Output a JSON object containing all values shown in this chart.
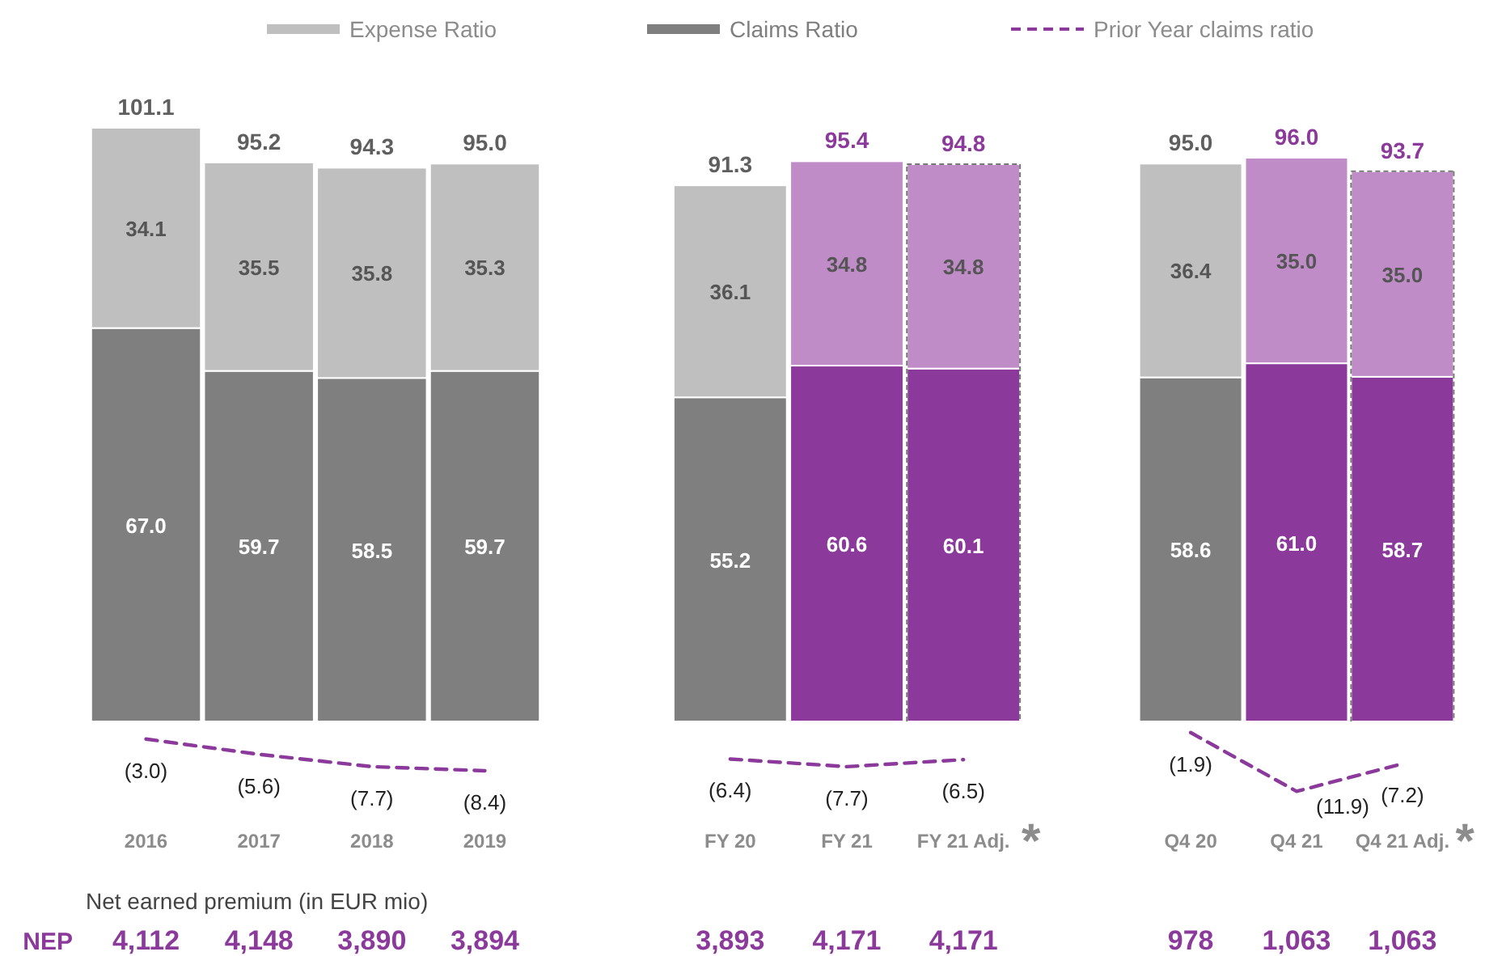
{
  "chart_data": [
    {
      "type": "bar",
      "stacked": true,
      "categories": [
        "2016",
        "2017",
        "2018",
        "2019"
      ],
      "tick_labels": "x",
      "legend": "top",
      "totals": [
        "101.1",
        "95.2",
        "94.3",
        "95.0"
      ],
      "series": [
        {
          "name": "Claims Ratio",
          "color": "#7f7f7f",
          "colors": [
            "#7f7f7f",
            "#7f7f7f",
            "#7f7f7f",
            "#7f7f7f"
          ],
          "values": [
            67.0,
            59.7,
            58.5,
            59.7
          ],
          "value_labels": [
            "67.0",
            "59.7",
            "58.5",
            "59.7"
          ]
        },
        {
          "name": "Expense Ratio",
          "color": "#bfbfbf",
          "colors": [
            "#bfbfbf",
            "#bfbfbf",
            "#bfbfbf",
            "#bfbfbf"
          ],
          "values": [
            34.1,
            35.5,
            35.8,
            35.3
          ],
          "value_labels": [
            "34.1",
            "35.5",
            "35.8",
            "35.3"
          ]
        },
        {
          "name": "Prior Year claims ratio",
          "type": "line",
          "line_style": "dashed",
          "color": "#8b3a9b",
          "values": [
            -3.0,
            -5.6,
            -7.7,
            -8.4
          ],
          "value_labels": [
            "(3.0)",
            "(5.6)",
            "(7.7)",
            "(8.4)"
          ]
        }
      ],
      "annotations": [
        "Net earned premium (in EUR mio)",
        "NEP",
        "4,112",
        "4,148",
        "3,890",
        "3,894"
      ]
    },
    {
      "type": "bar",
      "stacked": true,
      "categories": [
        "FY 20",
        "FY 21",
        "FY 21 Adj."
      ],
      "tick_labels": "x",
      "totals": [
        "91.3",
        "95.4",
        "94.8"
      ],
      "series": [
        {
          "colors": [
            "#7f7f7f",
            "#8b3a9b",
            "#8b3a9b"
          ],
          "values": [
            55.2,
            60.6,
            60.1
          ],
          "value_labels": [
            "55.2",
            "60.6",
            "60.1"
          ]
        },
        {
          "colors": [
            "#bfbfbf",
            "#bf8cc8",
            "#bf8cc8"
          ],
          "values": [
            36.1,
            34.8,
            34.8
          ],
          "value_labels": [
            "36.1",
            "34.8",
            "34.8"
          ]
        },
        {
          "type": "line",
          "line_style": "dashed",
          "color": "#8b3a9b",
          "values": [
            -6.4,
            -7.7,
            -6.5
          ],
          "value_labels": [
            "(6.4)",
            "(7.7)",
            "(6.5)"
          ]
        }
      ],
      "annotations": [
        "*",
        "3,893",
        "4,171",
        "4,171"
      ]
    },
    {
      "type": "bar",
      "stacked": true,
      "categories": [
        "Q4 20",
        "Q4 21",
        "Q4 21 Adj."
      ],
      "tick_labels": "x",
      "totals": [
        "95.0",
        "96.0",
        "93.7"
      ],
      "series": [
        {
          "colors": [
            "#7f7f7f",
            "#8b3a9b",
            "#8b3a9b"
          ],
          "values": [
            58.6,
            61.0,
            58.7
          ],
          "value_labels": [
            "58.6",
            "61.0",
            "58.7"
          ]
        },
        {
          "colors": [
            "#bfbfbf",
            "#bf8cc8",
            "#bf8cc8"
          ],
          "values": [
            36.4,
            35.0,
            35.0
          ],
          "value_labels": [
            "36.4",
            "35.0",
            "35.0"
          ]
        },
        {
          "type": "line",
          "line_style": "dashed",
          "color": "#8b3a9b",
          "values": [
            -1.9,
            -11.9,
            -7.2
          ],
          "value_labels": [
            "(1.9)",
            "(11.9)",
            "(7.2)"
          ]
        }
      ],
      "annotations": [
        "*",
        "978",
        "1,063",
        "1,063"
      ]
    }
  ]
}
